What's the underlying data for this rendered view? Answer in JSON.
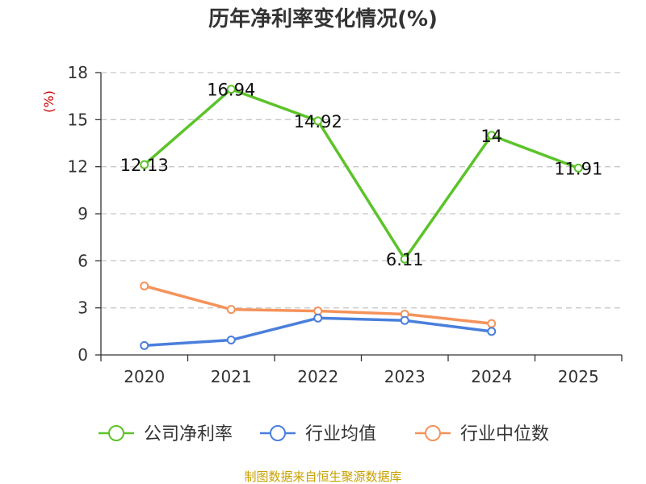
{
  "chart_data": {
    "type": "line",
    "title": "历年净利率变化情况(%)",
    "ylabel": "(%)",
    "x": [
      "2020",
      "2021",
      "2022",
      "2023",
      "2024",
      "2025"
    ],
    "ylim": [
      0,
      18
    ],
    "yticks": [
      0,
      3,
      6,
      9,
      12,
      15,
      18
    ],
    "grid": true,
    "legend_position": "bottom",
    "series": [
      {
        "name": "公司净利率",
        "color": "#5cc32a",
        "values": [
          12.13,
          16.94,
          14.92,
          6.11,
          14,
          11.91
        ],
        "labels": [
          "12.13",
          "16.94",
          "14.92",
          "6.11",
          "14",
          "11.91"
        ]
      },
      {
        "name": "行业均值",
        "color": "#4a7fdc",
        "values": [
          0.6,
          0.95,
          2.35,
          2.2,
          1.5,
          null
        ]
      },
      {
        "name": "行业中位数",
        "color": "#f5925a",
        "values": [
          4.4,
          2.9,
          2.8,
          2.6,
          2.0,
          null
        ]
      }
    ]
  },
  "footer": {
    "source": "制图数据来自恒生聚源数据库"
  }
}
